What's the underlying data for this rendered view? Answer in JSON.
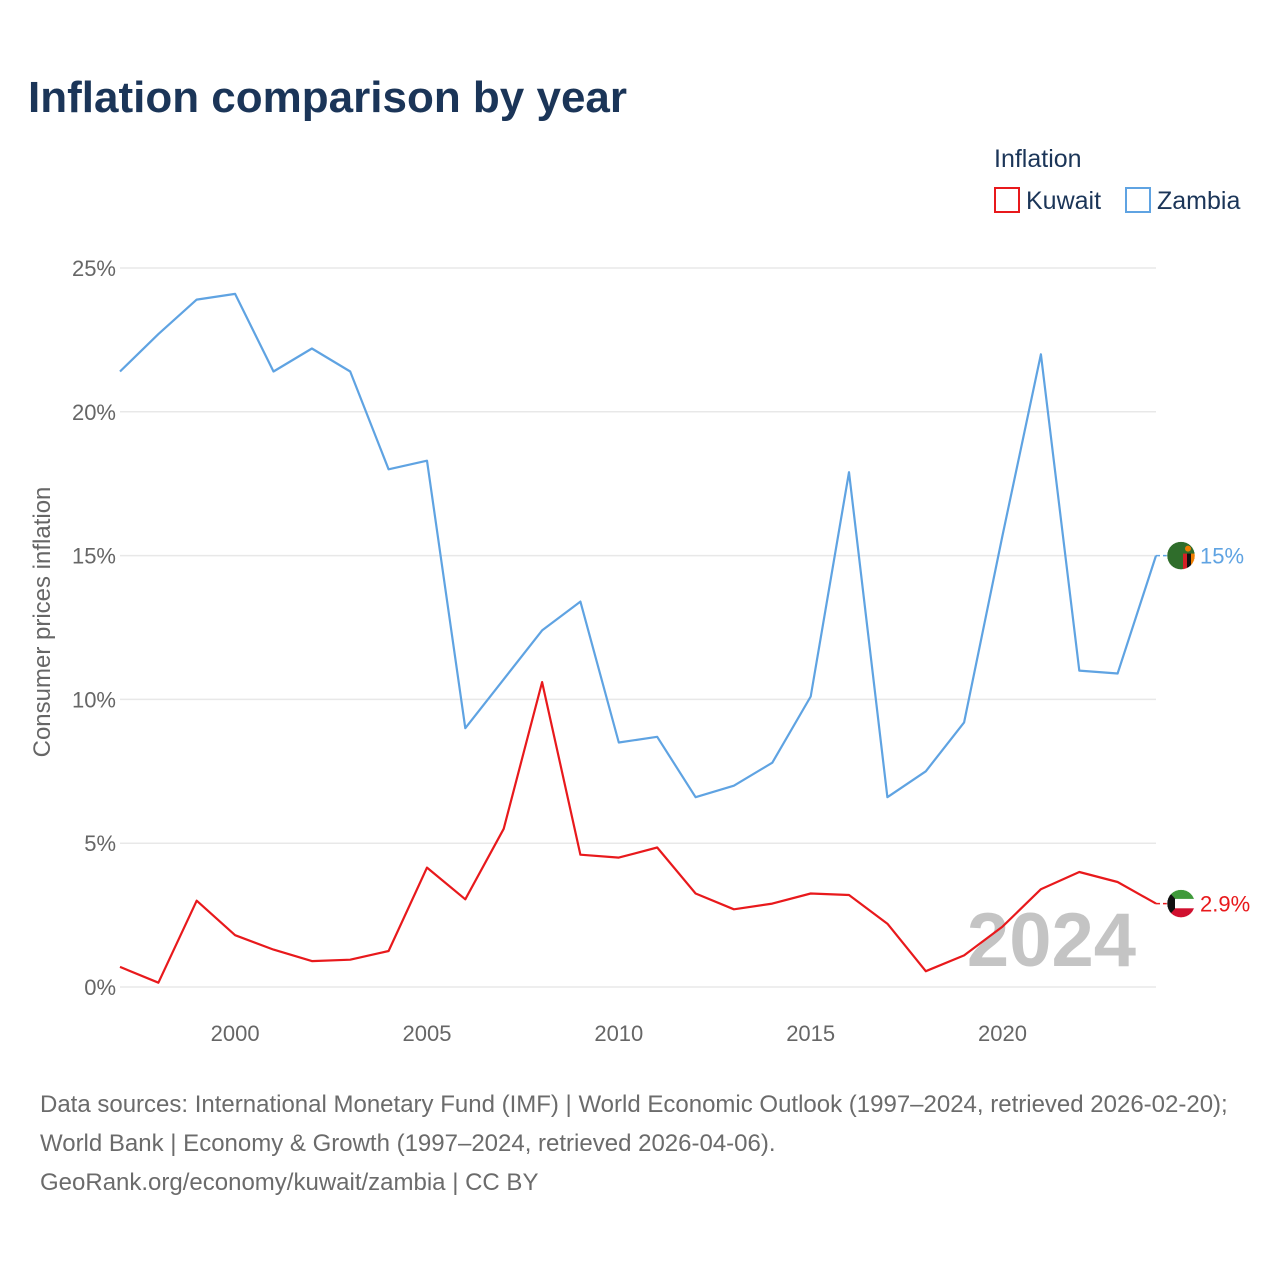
{
  "chart_data": {
    "type": "line",
    "title": "Inflation comparison by year",
    "ylabel": "Consumer prices inflation",
    "xlabel": "",
    "ylim": [
      0,
      25
    ],
    "xlim": [
      1997,
      2024
    ],
    "yticks": [
      0,
      5,
      10,
      15,
      20,
      25
    ],
    "ytick_labels": [
      "0%",
      "5%",
      "10%",
      "15%",
      "20%",
      "25%"
    ],
    "xticks": [
      2000,
      2005,
      2010,
      2015,
      2020
    ],
    "xtick_labels": [
      "2000",
      "2005",
      "2010",
      "2015",
      "2020"
    ],
    "legend_title": "Inflation",
    "legend_position": "top-right",
    "year_label": "2024",
    "x": [
      1997,
      1998,
      1999,
      2000,
      2001,
      2002,
      2003,
      2004,
      2005,
      2006,
      2007,
      2008,
      2009,
      2010,
      2011,
      2012,
      2013,
      2014,
      2015,
      2016,
      2017,
      2018,
      2019,
      2020,
      2021,
      2022,
      2023,
      2024
    ],
    "series": [
      {
        "name": "Kuwait",
        "color": "#e8191c",
        "end_label": "2.9%",
        "values": [
          0.7,
          0.15,
          3.0,
          1.8,
          1.3,
          0.9,
          0.95,
          1.25,
          4.15,
          3.05,
          5.5,
          10.6,
          4.6,
          4.5,
          4.85,
          3.25,
          2.7,
          2.9,
          3.25,
          3.2,
          2.2,
          0.55,
          1.1,
          2.1,
          3.4,
          4.0,
          3.65,
          2.9
        ]
      },
      {
        "name": "Zambia",
        "color": "#5fa3e2",
        "end_label": "15%",
        "values": [
          21.4,
          22.7,
          23.9,
          24.1,
          21.4,
          22.2,
          21.4,
          18.0,
          18.3,
          9.0,
          10.7,
          12.4,
          13.4,
          8.5,
          8.7,
          6.6,
          7.0,
          7.8,
          10.1,
          17.9,
          6.6,
          7.5,
          9.2,
          15.7,
          22.0,
          11.0,
          10.9,
          15.0
        ]
      }
    ]
  },
  "source": {
    "line1": "Data sources: International Monetary Fund (IMF) | World Economic Outlook (1997–2024, retrieved 2026-02-20); World Bank | Economy & Growth (1997–2024, retrieved 2026-04-06).",
    "line2": "GeoRank.org/economy/kuwait/zambia | CC BY"
  }
}
